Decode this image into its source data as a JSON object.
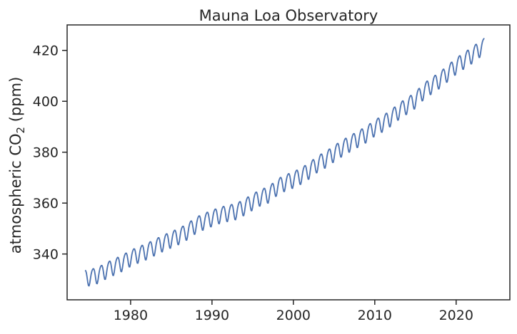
{
  "chart_data": {
    "type": "line",
    "title": "Mauna Loa Observatory",
    "xlabel": "",
    "ylabel": "atmospheric CO",
    "ylabel_subscript": "2",
    "ylabel_suffix": " (ppm)",
    "xlim": [
      1972.2,
      2026.6
    ],
    "ylim": [
      322,
      430
    ],
    "xticks": [
      1980,
      1990,
      2000,
      2010,
      2020
    ],
    "xtick_labels": [
      "1980",
      "1990",
      "2000",
      "2010",
      "2020"
    ],
    "yticks": [
      340,
      360,
      380,
      400,
      420
    ],
    "ytick_labels": [
      "340",
      "360",
      "380",
      "400",
      "420"
    ],
    "grid": false,
    "legend": "none",
    "series": [
      {
        "color": "#4c72b0",
        "x_start": 1974.4,
        "x_end": 2023.5,
        "x": [
          1974.4,
          1975,
          1976,
          1977,
          1978,
          1979,
          1980,
          1981,
          1982,
          1983,
          1984,
          1985,
          1986,
          1987,
          1988,
          1989,
          1990,
          1991,
          1992,
          1993,
          1994,
          1995,
          1996,
          1997,
          1998,
          1999,
          2000,
          2001,
          2002,
          2003,
          2004,
          2005,
          2006,
          2007,
          2008,
          2009,
          2010,
          2011,
          2012,
          2013,
          2014,
          2015,
          2016,
          2017,
          2018,
          2019,
          2020,
          2021,
          2022,
          2023,
          2023.5
        ],
        "y_trend": [
          330.8,
          331.1,
          332.0,
          333.8,
          335.3,
          336.8,
          338.7,
          340.1,
          341.4,
          343.0,
          344.6,
          346.0,
          347.4,
          349.2,
          351.6,
          353.1,
          354.4,
          355.6,
          356.4,
          357.1,
          358.8,
          360.8,
          362.6,
          363.7,
          366.6,
          368.3,
          369.5,
          371.1,
          373.2,
          375.8,
          377.5,
          379.8,
          381.9,
          383.8,
          385.6,
          387.4,
          389.9,
          391.6,
          393.8,
          396.5,
          398.6,
          400.8,
          404.2,
          406.5,
          408.7,
          411.4,
          414.2,
          416.4,
          418.5,
          421.1,
          422.0
        ],
        "seasonal_amplitude": 3.2,
        "y_range": [
          327,
          425
        ]
      }
    ]
  }
}
